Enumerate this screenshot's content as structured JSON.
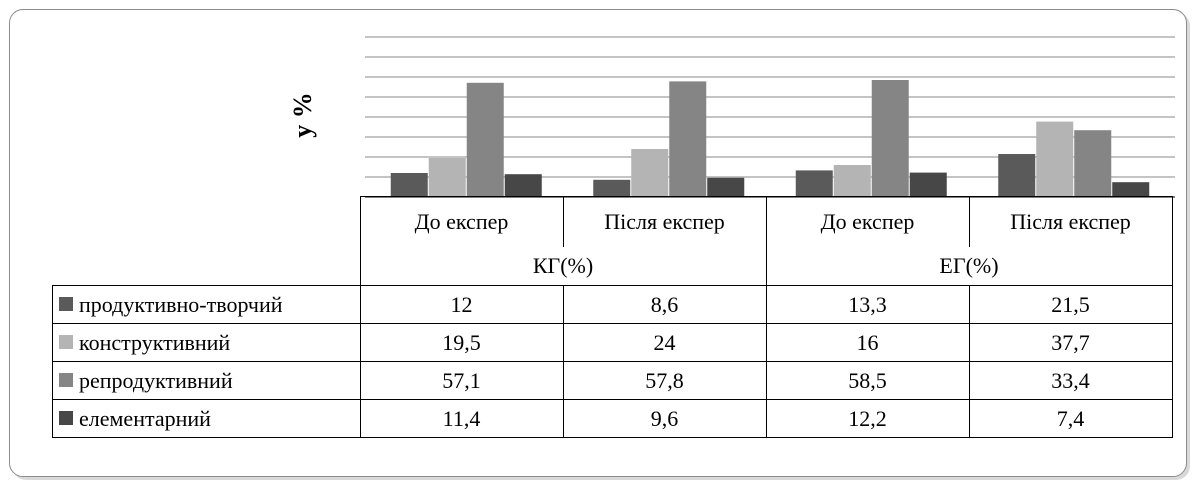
{
  "chart_data": {
    "type": "bar",
    "categories": [
      "До експер",
      "Після експер",
      "До експер",
      "Після експер"
    ],
    "groups": [
      {
        "label": "КГ(%)",
        "span": 2
      },
      {
        "label": "ЕГ(%)",
        "span": 2
      }
    ],
    "series": [
      {
        "name": "продуктивно-творчий",
        "color": "#5a5a5a",
        "values": [
          12,
          8.6,
          13.3,
          21.5
        ],
        "labels": [
          "12",
          "8,6",
          "13,3",
          "21,5"
        ]
      },
      {
        "name": "конструктивний",
        "color": "#b4b4b4",
        "values": [
          19.5,
          24,
          16,
          37.7
        ],
        "labels": [
          "19,5",
          "24",
          "16",
          "37,7"
        ]
      },
      {
        "name": "репродуктивний",
        "color": "#858585",
        "values": [
          57.1,
          57.8,
          58.5,
          33.4
        ],
        "labels": [
          "57,1",
          "57,8",
          "58,5",
          "33,4"
        ]
      },
      {
        "name": "елементарний",
        "color": "#474747",
        "values": [
          11.4,
          9.6,
          12.2,
          7.4
        ],
        "labels": [
          "11,4",
          "9,6",
          "12,2",
          "7,4"
        ]
      }
    ],
    "ylabel": "у %",
    "ylim": [
      0,
      80
    ],
    "y_gridlines": 8,
    "grid": true,
    "legend": "table-left"
  }
}
